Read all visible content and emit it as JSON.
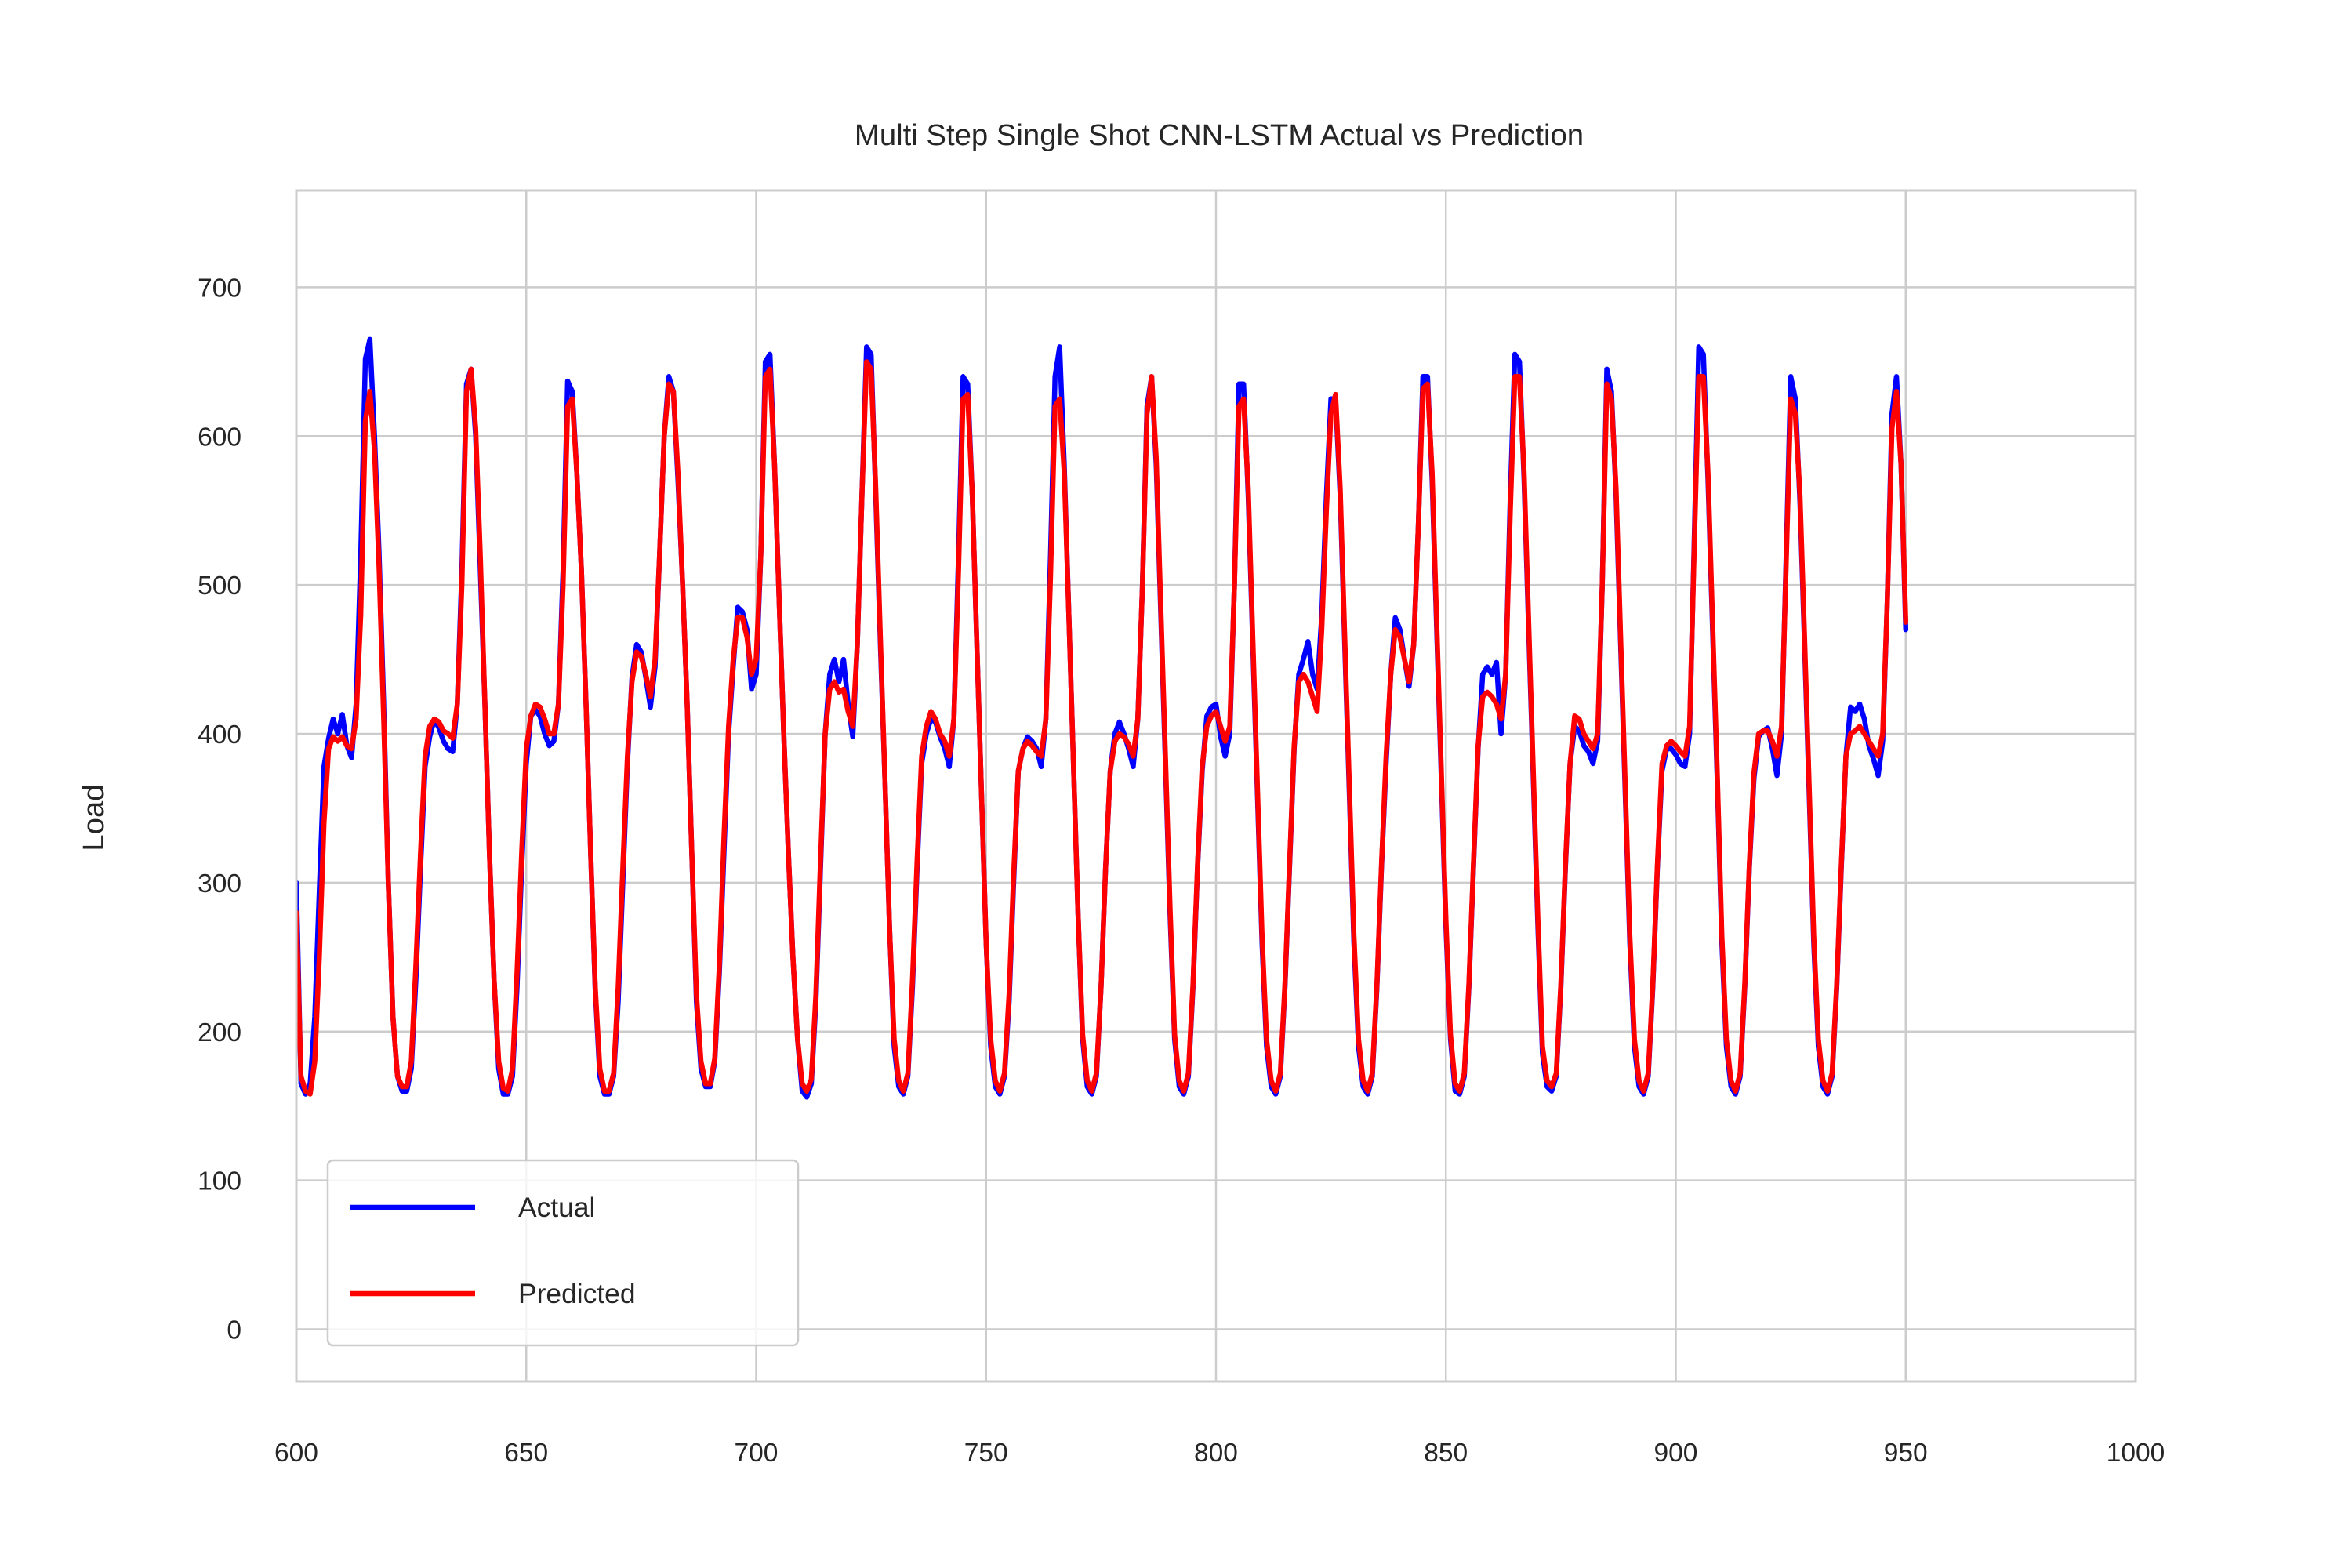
{
  "chart_data": {
    "type": "line",
    "title": "Multi Step Single Shot CNN-LSTM Actual vs Prediction",
    "xlabel": "",
    "ylabel": "Load",
    "xlim": [
      600,
      1000
    ],
    "ylim": [
      -35,
      765
    ],
    "xticks": [
      600,
      650,
      700,
      750,
      800,
      850,
      900,
      950,
      1000
    ],
    "xtick_labels": [
      "600",
      "650",
      "700",
      "750",
      "800",
      "850",
      "900",
      "950",
      "1000"
    ],
    "yticks": [
      0,
      100,
      200,
      300,
      400,
      500,
      600,
      700
    ],
    "ytick_labels": [
      "0",
      "100",
      "200",
      "300",
      "400",
      "500",
      "600",
      "700"
    ],
    "grid": true,
    "legend_position": "lower-left",
    "series": [
      {
        "name": "Actual",
        "color": "#0000ff",
        "x_start": 600,
        "x_step": 1,
        "values": [
          300,
          165,
          158,
          165,
          210,
          295,
          378,
          397,
          410,
          400,
          413,
          392,
          384,
          420,
          520,
          652,
          665,
          600,
          520,
          420,
          300,
          210,
          170,
          160,
          160,
          175,
          235,
          310,
          378,
          398,
          410,
          404,
          395,
          390,
          388,
          420,
          510,
          635,
          645,
          600,
          510,
          420,
          320,
          235,
          175,
          158,
          158,
          170,
          230,
          310,
          380,
          412,
          416,
          412,
          400,
          392,
          395,
          420,
          510,
          637,
          630,
          575,
          510,
          420,
          320,
          228,
          170,
          158,
          158,
          170,
          220,
          300,
          380,
          438,
          460,
          455,
          438,
          418,
          445,
          520,
          600,
          640,
          630,
          570,
          500,
          420,
          320,
          220,
          175,
          163,
          163,
          180,
          240,
          320,
          400,
          445,
          485,
          482,
          470,
          430,
          440,
          520,
          650,
          655,
          580,
          490,
          400,
          320,
          250,
          195,
          160,
          156,
          165,
          220,
          310,
          400,
          440,
          450,
          435,
          450,
          420,
          398,
          460,
          560,
          660,
          655,
          560,
          460,
          370,
          270,
          190,
          163,
          158,
          170,
          230,
          310,
          380,
          400,
          410,
          408,
          398,
          390,
          378,
          410,
          520,
          640,
          635,
          560,
          460,
          360,
          260,
          190,
          163,
          158,
          170,
          220,
          300,
          375,
          390,
          398,
          395,
          390,
          378,
          410,
          520,
          640,
          660,
          580,
          480,
          380,
          280,
          195,
          163,
          158,
          170,
          230,
          310,
          375,
          400,
          408,
          400,
          390,
          378,
          410,
          500,
          620,
          640,
          580,
          480,
          380,
          280,
          195,
          163,
          158,
          170,
          230,
          310,
          375,
          412,
          418,
          420,
          398,
          385,
          400,
          500,
          635,
          635,
          560,
          460,
          360,
          260,
          190,
          163,
          158,
          170,
          230,
          310,
          390,
          440,
          450,
          462,
          440,
          430,
          480,
          560,
          625,
          625,
          560,
          460,
          360,
          260,
          190,
          163,
          158,
          170,
          230,
          310,
          380,
          440,
          478,
          470,
          450,
          432,
          460,
          540,
          640,
          640,
          570,
          470,
          370,
          270,
          195,
          160,
          158,
          170,
          230,
          310,
          390,
          440,
          445,
          440,
          448,
          400,
          440,
          560,
          655,
          650,
          570,
          470,
          370,
          270,
          185,
          163,
          160,
          170,
          230,
          310,
          380,
          405,
          402,
          392,
          388,
          380,
          395,
          500,
          645,
          630,
          560,
          460,
          360,
          260,
          190,
          163,
          158,
          170,
          230,
          310,
          375,
          390,
          390,
          386,
          380,
          378,
          400,
          530,
          660,
          655,
          570,
          470,
          370,
          260,
          190,
          163,
          158,
          170,
          230,
          310,
          370,
          398,
          402,
          404,
          390,
          372,
          400,
          520,
          640,
          625,
          555,
          460,
          360,
          260,
          190,
          163,
          158,
          170,
          230,
          310,
          385,
          418,
          415,
          420,
          410,
          392,
          383,
          372,
          395,
          490,
          615,
          640,
          580,
          470
        ],
        "note_hidden_points": true
      },
      {
        "name": "Predicted",
        "color": "#ff0000",
        "x_start": 600,
        "x_step": 1,
        "values": [
          280,
          170,
          160,
          158,
          180,
          250,
          340,
          390,
          398,
          395,
          398,
          392,
          390,
          410,
          480,
          610,
          630,
          590,
          510,
          410,
          300,
          210,
          170,
          163,
          163,
          180,
          245,
          320,
          385,
          405,
          410,
          408,
          402,
          400,
          397,
          420,
          500,
          630,
          645,
          605,
          520,
          420,
          320,
          235,
          180,
          162,
          160,
          175,
          240,
          320,
          390,
          412,
          420,
          418,
          410,
          400,
          400,
          420,
          500,
          620,
          625,
          575,
          510,
          420,
          320,
          230,
          175,
          160,
          160,
          172,
          230,
          310,
          385,
          435,
          455,
          452,
          440,
          425,
          450,
          520,
          600,
          635,
          630,
          575,
          500,
          420,
          320,
          225,
          180,
          165,
          165,
          182,
          245,
          330,
          405,
          450,
          478,
          478,
          465,
          440,
          450,
          520,
          640,
          645,
          580,
          490,
          400,
          320,
          250,
          195,
          165,
          160,
          168,
          225,
          315,
          400,
          430,
          435,
          428,
          430,
          415,
          405,
          460,
          560,
          650,
          645,
          565,
          465,
          370,
          270,
          195,
          167,
          160,
          172,
          235,
          315,
          385,
          405,
          415,
          410,
          400,
          395,
          385,
          410,
          510,
          625,
          628,
          560,
          460,
          360,
          260,
          195,
          167,
          160,
          172,
          225,
          305,
          375,
          390,
          395,
          392,
          388,
          385,
          410,
          505,
          620,
          625,
          575,
          480,
          380,
          280,
          198,
          167,
          160,
          172,
          230,
          310,
          375,
          395,
          400,
          398,
          393,
          385,
          410,
          500,
          615,
          640,
          585,
          485,
          385,
          285,
          198,
          167,
          160,
          172,
          232,
          312,
          378,
          405,
          412,
          415,
          405,
          395,
          405,
          500,
          620,
          625,
          565,
          465,
          365,
          265,
          195,
          167,
          160,
          172,
          232,
          312,
          392,
          435,
          440,
          435,
          425,
          415,
          470,
          550,
          615,
          628,
          565,
          465,
          365,
          265,
          195,
          167,
          160,
          172,
          232,
          312,
          385,
          440,
          470,
          465,
          450,
          435,
          460,
          540,
          632,
          635,
          575,
          475,
          375,
          275,
          198,
          165,
          160,
          172,
          232,
          312,
          392,
          425,
          428,
          425,
          420,
          410,
          440,
          550,
          640,
          640,
          575,
          475,
          375,
          275,
          190,
          167,
          163,
          172,
          232,
          312,
          380,
          412,
          410,
          400,
          395,
          390,
          400,
          500,
          635,
          625,
          565,
          465,
          365,
          265,
          195,
          167,
          160,
          172,
          232,
          312,
          380,
          392,
          395,
          392,
          388,
          385,
          405,
          525,
          640,
          640,
          575,
          475,
          375,
          265,
          195,
          167,
          160,
          172,
          232,
          312,
          374,
          400,
          402,
          402,
          395,
          385,
          405,
          515,
          625,
          615,
          560,
          465,
          365,
          265,
          195,
          167,
          160,
          172,
          232,
          312,
          385,
          400,
          402,
          405,
          400,
          395,
          390,
          385,
          400,
          490,
          605,
          630,
          580,
          475
        ]
      }
    ]
  }
}
